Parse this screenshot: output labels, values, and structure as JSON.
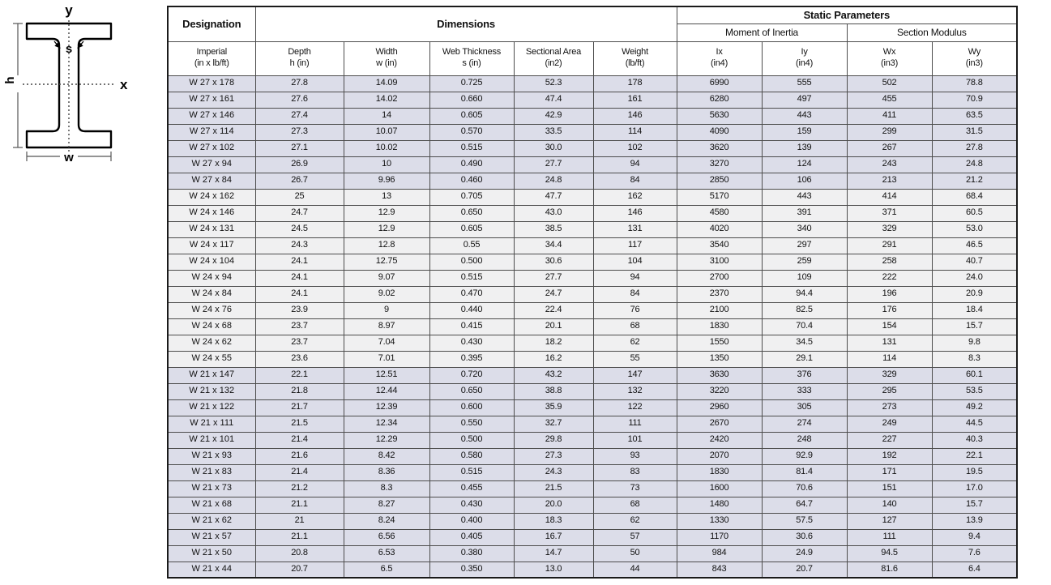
{
  "diagram": {
    "labels": {
      "y_axis": "y",
      "x_axis": "x",
      "depth": "h",
      "width": "w",
      "web": "s"
    }
  },
  "colors": {
    "group_lavender": "#dcdde9",
    "group_gray": "#f0f0f1",
    "grid_line": "#4d4d4d",
    "outer_border": "#1a1a1a",
    "header_bg": "#ffffff"
  },
  "table": {
    "header": {
      "designation": "Designation",
      "dimensions": "Dimensions",
      "static_parameters": "Static Parameters",
      "moment_of_inertia": "Moment of Inertia",
      "section_modulus": "Section Modulus",
      "columns": [
        {
          "line1": "Imperial",
          "line2": "(in x lb/ft)"
        },
        {
          "line1": "Depth",
          "line2": "h (in)"
        },
        {
          "line1": "Width",
          "line2": "w (in)"
        },
        {
          "line1": "Web Thickness",
          "line2": "s (in)"
        },
        {
          "line1": "Sectional Area",
          "line2": "(in2)"
        },
        {
          "line1": "Weight",
          "line2": "(lb/ft)"
        },
        {
          "line1": "Ix",
          "line2": "(in4)"
        },
        {
          "line1": "Iy",
          "line2": "(in4)"
        },
        {
          "line1": "Wx",
          "line2": "(in3)"
        },
        {
          "line1": "Wy",
          "line2": "(in3)"
        }
      ]
    },
    "group_colors": {
      "W27": "#dcdde9",
      "W24": "#f0f0f1",
      "W21": "#dcdde9"
    },
    "rows": [
      {
        "designation": "W 27 x 178",
        "group": "W27",
        "values": [
          "27.8",
          "14.09",
          "0.725",
          "52.3",
          "178",
          "6990",
          "555",
          "502",
          "78.8"
        ]
      },
      {
        "designation": "W 27 x 161",
        "group": "W27",
        "values": [
          "27.6",
          "14.02",
          "0.660",
          "47.4",
          "161",
          "6280",
          "497",
          "455",
          "70.9"
        ]
      },
      {
        "designation": "W 27 x 146",
        "group": "W27",
        "values": [
          "27.4",
          "14",
          "0.605",
          "42.9",
          "146",
          "5630",
          "443",
          "411",
          "63.5"
        ]
      },
      {
        "designation": "W 27 x 114",
        "group": "W27",
        "values": [
          "27.3",
          "10.07",
          "0.570",
          "33.5",
          "114",
          "4090",
          "159",
          "299",
          "31.5"
        ]
      },
      {
        "designation": "W 27 x 102",
        "group": "W27",
        "values": [
          "27.1",
          "10.02",
          "0.515",
          "30.0",
          "102",
          "3620",
          "139",
          "267",
          "27.8"
        ]
      },
      {
        "designation": "W 27 x 94",
        "group": "W27",
        "values": [
          "26.9",
          "10",
          "0.490",
          "27.7",
          "94",
          "3270",
          "124",
          "243",
          "24.8"
        ]
      },
      {
        "designation": "W 27 x 84",
        "group": "W27",
        "values": [
          "26.7",
          "9.96",
          "0.460",
          "24.8",
          "84",
          "2850",
          "106",
          "213",
          "21.2"
        ]
      },
      {
        "designation": "W 24 x 162",
        "group": "W24",
        "values": [
          "25",
          "13",
          "0.705",
          "47.7",
          "162",
          "5170",
          "443",
          "414",
          "68.4"
        ]
      },
      {
        "designation": "W 24 x 146",
        "group": "W24",
        "values": [
          "24.7",
          "12.9",
          "0.650",
          "43.0",
          "146",
          "4580",
          "391",
          "371",
          "60.5"
        ]
      },
      {
        "designation": "W 24 x 131",
        "group": "W24",
        "values": [
          "24.5",
          "12.9",
          "0.605",
          "38.5",
          "131",
          "4020",
          "340",
          "329",
          "53.0"
        ]
      },
      {
        "designation": "W 24 x 117",
        "group": "W24",
        "values": [
          "24.3",
          "12.8",
          "0.55",
          "34.4",
          "117",
          "3540",
          "297",
          "291",
          "46.5"
        ]
      },
      {
        "designation": "W 24 x 104",
        "group": "W24",
        "values": [
          "24.1",
          "12.75",
          "0.500",
          "30.6",
          "104",
          "3100",
          "259",
          "258",
          "40.7"
        ]
      },
      {
        "designation": "W 24 x 94",
        "group": "W24",
        "values": [
          "24.1",
          "9.07",
          "0.515",
          "27.7",
          "94",
          "2700",
          "109",
          "222",
          "24.0"
        ]
      },
      {
        "designation": "W 24 x 84",
        "group": "W24",
        "values": [
          "24.1",
          "9.02",
          "0.470",
          "24.7",
          "84",
          "2370",
          "94.4",
          "196",
          "20.9"
        ]
      },
      {
        "designation": "W 24 x 76",
        "group": "W24",
        "values": [
          "23.9",
          "9",
          "0.440",
          "22.4",
          "76",
          "2100",
          "82.5",
          "176",
          "18.4"
        ]
      },
      {
        "designation": "W 24 x 68",
        "group": "W24",
        "values": [
          "23.7",
          "8.97",
          "0.415",
          "20.1",
          "68",
          "1830",
          "70.4",
          "154",
          "15.7"
        ]
      },
      {
        "designation": "W 24 x 62",
        "group": "W24",
        "values": [
          "23.7",
          "7.04",
          "0.430",
          "18.2",
          "62",
          "1550",
          "34.5",
          "131",
          "9.8"
        ]
      },
      {
        "designation": "W 24 x 55",
        "group": "W24",
        "values": [
          "23.6",
          "7.01",
          "0.395",
          "16.2",
          "55",
          "1350",
          "29.1",
          "114",
          "8.3"
        ]
      },
      {
        "designation": "W 21 x 147",
        "group": "W21",
        "values": [
          "22.1",
          "12.51",
          "0.720",
          "43.2",
          "147",
          "3630",
          "376",
          "329",
          "60.1"
        ]
      },
      {
        "designation": "W 21 x 132",
        "group": "W21",
        "values": [
          "21.8",
          "12.44",
          "0.650",
          "38.8",
          "132",
          "3220",
          "333",
          "295",
          "53.5"
        ]
      },
      {
        "designation": "W 21 x 122",
        "group": "W21",
        "values": [
          "21.7",
          "12.39",
          "0.600",
          "35.9",
          "122",
          "2960",
          "305",
          "273",
          "49.2"
        ]
      },
      {
        "designation": "W 21 x 111",
        "group": "W21",
        "values": [
          "21.5",
          "12.34",
          "0.550",
          "32.7",
          "111",
          "2670",
          "274",
          "249",
          "44.5"
        ]
      },
      {
        "designation": "W 21 x 101",
        "group": "W21",
        "values": [
          "21.4",
          "12.29",
          "0.500",
          "29.8",
          "101",
          "2420",
          "248",
          "227",
          "40.3"
        ]
      },
      {
        "designation": "W 21 x 93",
        "group": "W21",
        "values": [
          "21.6",
          "8.42",
          "0.580",
          "27.3",
          "93",
          "2070",
          "92.9",
          "192",
          "22.1"
        ]
      },
      {
        "designation": "W 21 x 83",
        "group": "W21",
        "values": [
          "21.4",
          "8.36",
          "0.515",
          "24.3",
          "83",
          "1830",
          "81.4",
          "171",
          "19.5"
        ]
      },
      {
        "designation": "W 21 x 73",
        "group": "W21",
        "values": [
          "21.2",
          "8.3",
          "0.455",
          "21.5",
          "73",
          "1600",
          "70.6",
          "151",
          "17.0"
        ]
      },
      {
        "designation": "W 21 x 68",
        "group": "W21",
        "values": [
          "21.1",
          "8.27",
          "0.430",
          "20.0",
          "68",
          "1480",
          "64.7",
          "140",
          "15.7"
        ]
      },
      {
        "designation": "W 21 x 62",
        "group": "W21",
        "values": [
          "21",
          "8.24",
          "0.400",
          "18.3",
          "62",
          "1330",
          "57.5",
          "127",
          "13.9"
        ]
      },
      {
        "designation": "W 21 x 57",
        "group": "W21",
        "values": [
          "21.1",
          "6.56",
          "0.405",
          "16.7",
          "57",
          "1170",
          "30.6",
          "111",
          "9.4"
        ]
      },
      {
        "designation": "W 21 x 50",
        "group": "W21",
        "values": [
          "20.8",
          "6.53",
          "0.380",
          "14.7",
          "50",
          "984",
          "24.9",
          "94.5",
          "7.6"
        ]
      },
      {
        "designation": "W 21 x 44",
        "group": "W21",
        "values": [
          "20.7",
          "6.5",
          "0.350",
          "13.0",
          "44",
          "843",
          "20.7",
          "81.6",
          "6.4"
        ]
      }
    ]
  }
}
